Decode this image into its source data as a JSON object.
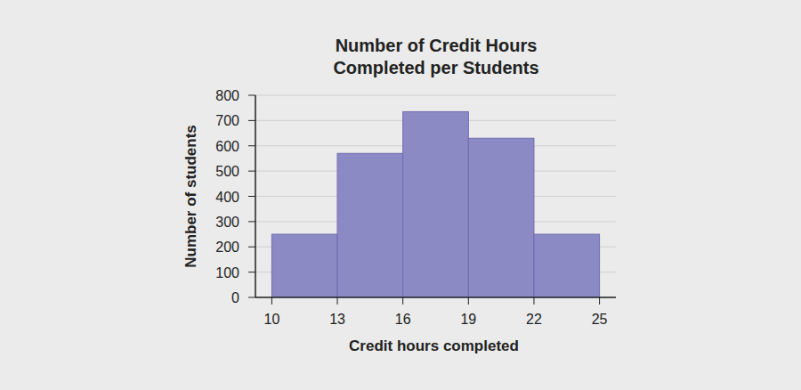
{
  "chart_data": {
    "type": "histogram",
    "title": [
      "Number of Credit Hours",
      "Completed per Students"
    ],
    "x_label": "Credit hours completed",
    "y_label": "Number of students",
    "bins": [
      10,
      13,
      16,
      19,
      22,
      25
    ],
    "values": [
      250,
      570,
      735,
      630,
      250
    ],
    "color": "#8c8ac5",
    "xlim": [
      9.25,
      25.75
    ],
    "xticks": [
      10,
      13,
      16,
      19,
      22,
      25
    ],
    "ylim": [
      0,
      800
    ],
    "yticks": [
      0,
      100,
      200,
      300,
      400,
      500,
      600,
      700,
      800
    ],
    "grid": true
  }
}
